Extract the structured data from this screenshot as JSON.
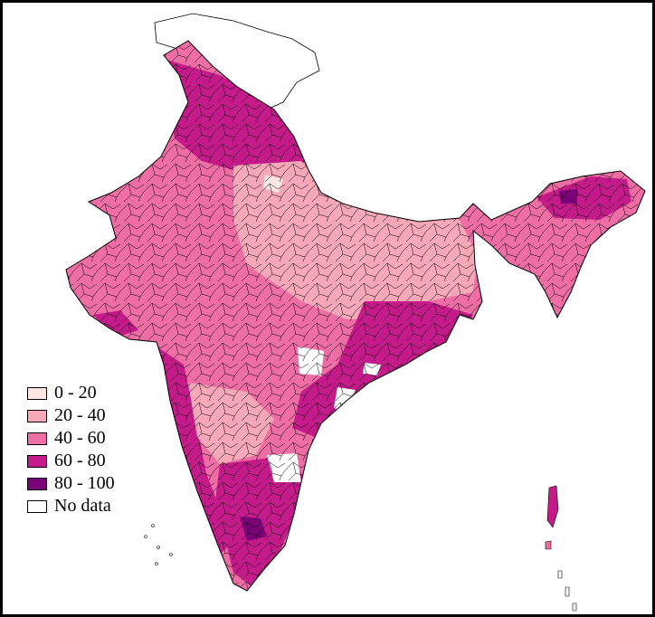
{
  "legend": {
    "items": [
      {
        "label": "0 - 20",
        "color": "#fde6e2"
      },
      {
        "label": "20 - 40",
        "color": "#f7a8b8"
      },
      {
        "label": "40 - 60",
        "color": "#ef6da5"
      },
      {
        "label": "60 - 80",
        "color": "#c51b8a"
      },
      {
        "label": "80 - 100",
        "color": "#7a0177"
      },
      {
        "label": "No data",
        "color": "#ffffff"
      }
    ]
  },
  "colors": {
    "border": "#000000",
    "background": "#ffffff"
  }
}
